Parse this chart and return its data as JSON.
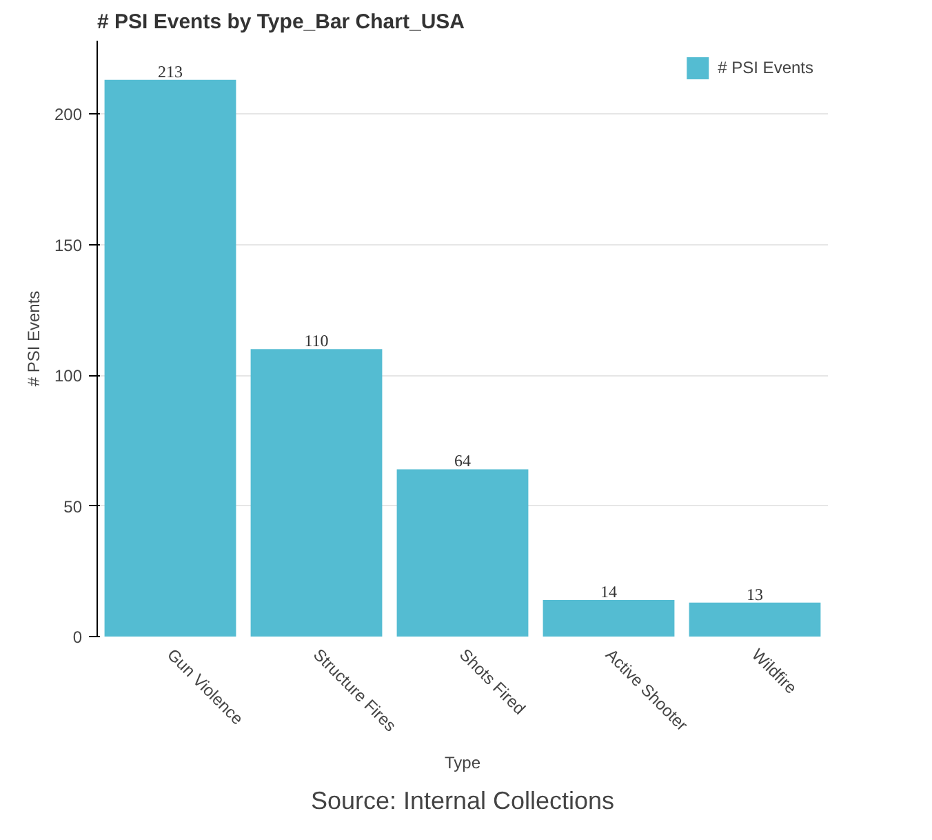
{
  "chart_data": {
    "type": "bar",
    "title": "# PSI Events by Type_Bar Chart_USA",
    "categories": [
      "Gun Violence",
      "Structure Fires",
      "Shots Fired",
      "Active Shooter",
      "Wildfire"
    ],
    "series": [
      {
        "name": "# PSI Events",
        "color": "#54bcd2",
        "values": [
          213,
          110,
          64,
          14,
          13
        ]
      }
    ],
    "xlabel": "Type",
    "ylabel": "# PSI Events",
    "ylim": [
      0,
      228
    ],
    "yticks": [
      0,
      50,
      100,
      150,
      200
    ],
    "grid": "y",
    "legend": "top right",
    "data_labels": true,
    "annotations": [
      "Source: Internal Collections"
    ]
  }
}
